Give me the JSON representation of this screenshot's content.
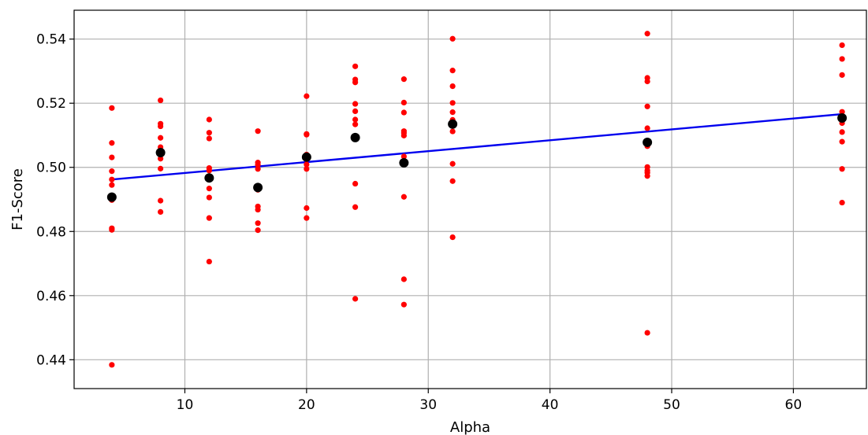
{
  "chart_data": {
    "type": "scatter",
    "title": "",
    "xlabel": "Alpha",
    "ylabel": "F1-Score",
    "xlim": [
      0.9,
      66.0
    ],
    "ylim": [
      0.431,
      0.549
    ],
    "xticks": [
      10,
      20,
      30,
      40,
      50,
      60
    ],
    "yticks": [
      0.44,
      0.46,
      0.48,
      0.5,
      0.52,
      0.54
    ],
    "xtick_labels": [
      "10",
      "20",
      "30",
      "40",
      "50",
      "60"
    ],
    "ytick_labels": [
      "0.44",
      "0.46",
      "0.48",
      "0.50",
      "0.52",
      "0.54"
    ],
    "grid": true,
    "legend": "none",
    "colors": {
      "samples": "#ff0000",
      "means": "#000000",
      "trend": "#0000ee",
      "grid": "#b0b0b0",
      "axes": "#000000"
    },
    "samples": {
      "x": [
        4,
        4,
        4,
        4,
        4,
        4,
        4,
        4,
        4,
        4,
        4,
        8,
        8,
        8,
        8,
        8,
        8,
        8,
        8,
        8,
        8,
        12,
        12,
        12,
        12,
        12,
        12,
        12,
        12,
        12,
        12,
        12,
        16,
        16,
        16,
        16,
        16,
        16,
        16,
        16,
        16,
        16,
        16,
        16,
        20,
        20,
        20,
        20,
        20,
        20,
        20,
        20,
        20,
        20,
        24,
        24,
        24,
        24,
        24,
        24,
        24,
        24,
        24,
        24,
        24,
        28,
        28,
        28,
        28,
        28,
        28,
        28,
        28,
        28,
        28,
        28,
        28,
        32,
        32,
        32,
        32,
        32,
        32,
        32,
        32,
        32,
        32,
        32,
        32,
        48,
        48,
        48,
        48,
        48,
        48,
        48,
        48,
        48,
        48,
        48,
        48,
        64,
        64,
        64,
        64,
        64,
        64,
        64,
        64,
        64,
        64,
        64
      ],
      "y": [
        0.5185,
        0.5076,
        0.5031,
        0.4988,
        0.4962,
        0.4945,
        0.4898,
        0.4902,
        0.481,
        0.4805,
        0.4384,
        0.5209,
        0.5136,
        0.5128,
        0.5092,
        0.5063,
        0.5027,
        0.4996,
        0.4896,
        0.4861,
        0.5045,
        0.5149,
        0.5108,
        0.509,
        0.4998,
        0.499,
        0.4968,
        0.4934,
        0.4906,
        0.4842,
        0.4706,
        0.4966,
        0.5113,
        0.5015,
        0.4995,
        0.4938,
        0.493,
        0.4878,
        0.4868,
        0.4826,
        0.4804,
        0.4938,
        0.5008,
        0.494,
        0.5222,
        0.5104,
        0.5102,
        0.504,
        0.5009,
        0.4995,
        0.4873,
        0.4842,
        0.5032,
        0.5025,
        0.5315,
        0.5274,
        0.5265,
        0.5198,
        0.5175,
        0.5149,
        0.5134,
        0.4949,
        0.4876,
        0.459,
        0.5093,
        0.5275,
        0.5202,
        0.5171,
        0.5113,
        0.5107,
        0.5099,
        0.5034,
        0.5014,
        0.4908,
        0.4651,
        0.4572,
        0.5013,
        0.5401,
        0.5302,
        0.5253,
        0.5201,
        0.5172,
        0.5148,
        0.514,
        0.5112,
        0.5011,
        0.4957,
        0.4782,
        0.5134,
        0.5417,
        0.5279,
        0.5268,
        0.519,
        0.5122,
        0.5066,
        0.5001,
        0.499,
        0.4983,
        0.4973,
        0.4484,
        0.5078,
        0.5381,
        0.5338,
        0.5288,
        0.5173,
        0.516,
        0.5138,
        0.511,
        0.508,
        0.4995,
        0.489,
        0.515
      ]
    },
    "means": {
      "x": [
        4,
        8,
        12,
        16,
        20,
        24,
        28,
        32,
        48,
        64
      ],
      "y": [
        0.4907,
        0.5046,
        0.4967,
        0.4937,
        0.5032,
        0.5093,
        0.5014,
        0.5135,
        0.5078,
        0.5154
      ]
    },
    "trend": {
      "x": [
        4,
        64
      ],
      "y": [
        0.4962,
        0.5166
      ]
    }
  }
}
